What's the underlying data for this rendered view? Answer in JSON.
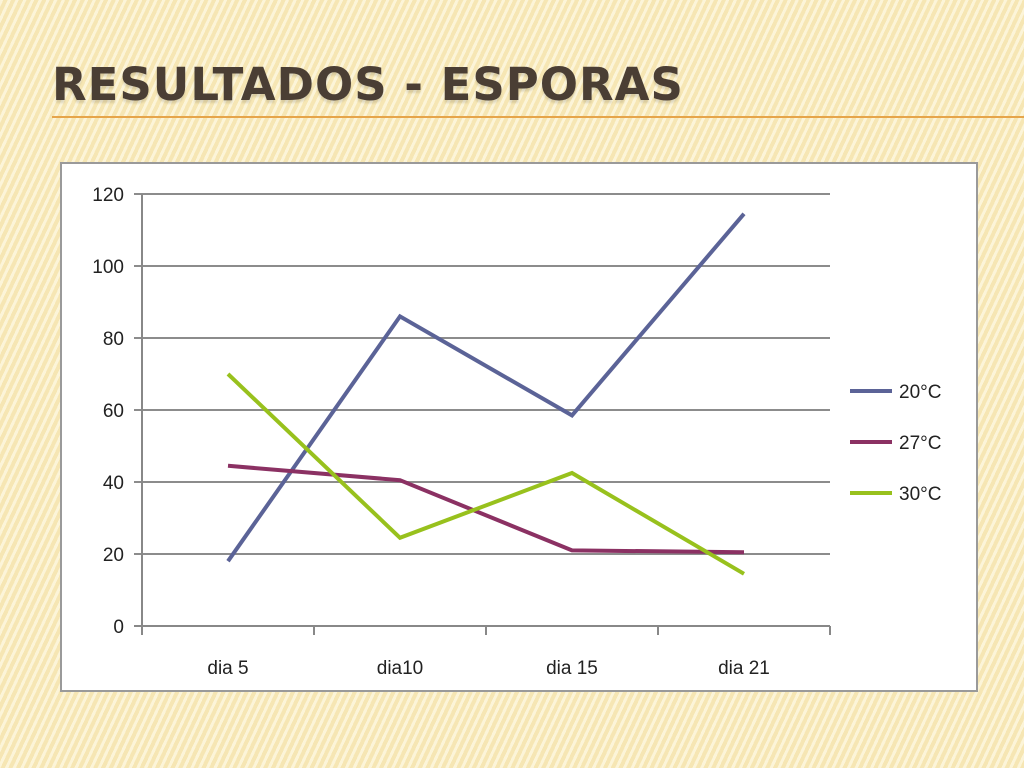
{
  "slide": {
    "title": "RESULTADOS - ESPORAS"
  },
  "chart_data": {
    "type": "line",
    "categories": [
      "dia 5",
      "dia10",
      "dia 15",
      "dia 21"
    ],
    "series": [
      {
        "name": "20°C",
        "color": "#5b6397",
        "values": [
          18,
          86,
          58.5,
          114.5
        ]
      },
      {
        "name": "27°C",
        "color": "#8b3163",
        "values": [
          44.5,
          40.5,
          21,
          20.5
        ]
      },
      {
        "name": "30°C",
        "color": "#98c11d",
        "values": [
          70,
          24.5,
          42.5,
          14.5
        ]
      }
    ],
    "ylim": [
      0,
      120
    ],
    "yticks": [
      0,
      20,
      40,
      60,
      80,
      100,
      120
    ],
    "grid": true,
    "legend": "right",
    "title": "",
    "xlabel": "",
    "ylabel": ""
  }
}
